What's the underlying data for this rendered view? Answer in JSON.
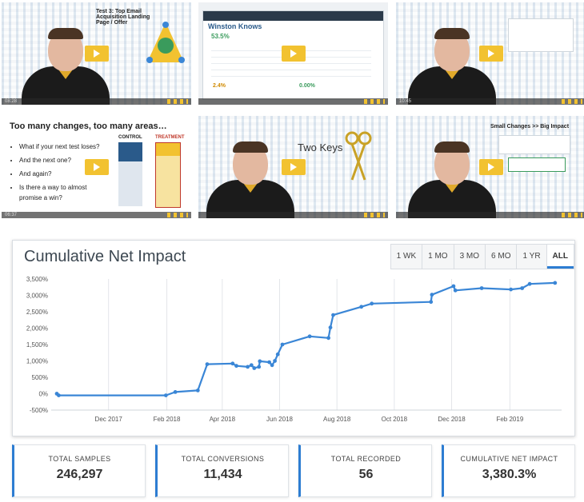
{
  "thumbnails": [
    {
      "time": "08:28",
      "slide_title": "Test 3: Top Email Acquisition Landing Page / Offer"
    },
    {
      "time": "",
      "app_name": "Winston Knows",
      "metric_a": "53.5%",
      "metric_b": "2.4%",
      "metric_c": "0.00%"
    },
    {
      "time": "10:45",
      "slide_title": ""
    },
    {
      "time": "06:37",
      "slide_title": "Too many changes, too many areas…",
      "bullets": [
        "What if your next test loses?",
        "And the next one?",
        "And again?",
        "Is there a way to almost promise a win?"
      ],
      "labels": [
        "CONTROL",
        "TREATMENT"
      ]
    },
    {
      "time": "",
      "slide_title": "Two Keys"
    },
    {
      "time": "",
      "slide_title": "Small Changes >> Big Impact"
    }
  ],
  "chart_card": {
    "title": "Cumulative Net Impact",
    "range_tabs": [
      "1 WK",
      "1 MO",
      "3 MO",
      "6 MO",
      "1 YR",
      "ALL"
    ],
    "active_tab": "ALL"
  },
  "chart_data": {
    "type": "line",
    "title": "Cumulative Net Impact",
    "xlabel": "",
    "ylabel": "",
    "y_unit": "%",
    "ylim": [
      -500,
      3500
    ],
    "yticks": [
      "3,500%",
      "3,000%",
      "2,500%",
      "2,000%",
      "1,500%",
      "1,000%",
      "500%",
      "0%",
      "-500%"
    ],
    "xticks": [
      "Dec 2017",
      "Feb 2018",
      "Apr 2018",
      "Jun 2018",
      "Aug 2018",
      "Oct 2018",
      "Dec 2018",
      "Feb 2019"
    ],
    "grid": "vertical",
    "color": "#3a86d6",
    "series": [
      {
        "points": [
          [
            "2017-10-07",
            0
          ],
          [
            "2017-10-09",
            -50
          ],
          [
            "2018-01-31",
            -50
          ],
          [
            "2018-02-10",
            50
          ],
          [
            "2018-03-06",
            100
          ],
          [
            "2018-03-16",
            900
          ],
          [
            "2018-04-12",
            920
          ],
          [
            "2018-04-16",
            850
          ],
          [
            "2018-04-28",
            820
          ],
          [
            "2018-05-02",
            870
          ],
          [
            "2018-05-05",
            780
          ],
          [
            "2018-05-10",
            820
          ],
          [
            "2018-05-11",
            990
          ],
          [
            "2018-05-21",
            960
          ],
          [
            "2018-05-24",
            870
          ],
          [
            "2018-05-27",
            1000
          ],
          [
            "2018-05-30",
            1200
          ],
          [
            "2018-06-04",
            1500
          ],
          [
            "2018-07-03",
            1750
          ],
          [
            "2018-07-23",
            1700
          ],
          [
            "2018-07-25",
            2020
          ],
          [
            "2018-07-28",
            2400
          ],
          [
            "2018-08-27",
            2650
          ],
          [
            "2018-09-07",
            2750
          ],
          [
            "2018-11-09",
            2800
          ],
          [
            "2018-11-10",
            3020
          ],
          [
            "2018-12-03",
            3280
          ],
          [
            "2018-12-05",
            3150
          ],
          [
            "2019-01-02",
            3220
          ],
          [
            "2019-02-02",
            3180
          ],
          [
            "2019-02-14",
            3220
          ],
          [
            "2019-02-22",
            3350
          ],
          [
            "2019-03-21",
            3380
          ]
        ]
      }
    ]
  },
  "stats": [
    {
      "label": "TOTAL SAMPLES",
      "value": "246,297"
    },
    {
      "label": "TOTAL CONVERSIONS",
      "value": "11,434"
    },
    {
      "label": "TOTAL RECORDED",
      "value": "56"
    },
    {
      "label": "CUMULATIVE NET IMPACT",
      "value": "3,380.3%"
    }
  ],
  "colors": {
    "accent": "#2d7dd2",
    "play": "#f2c230",
    "line": "#3a86d6"
  }
}
